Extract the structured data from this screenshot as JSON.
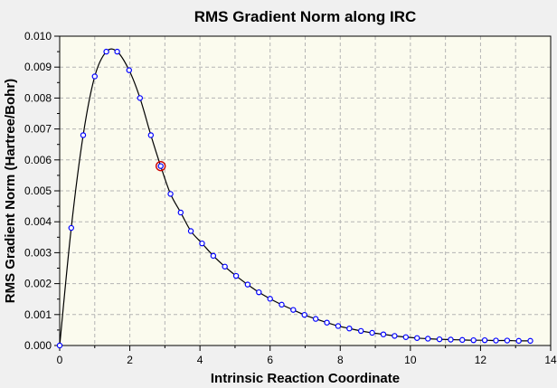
{
  "colors": {
    "window_background": "#f0f0f0",
    "plot_background": "#fbfbee",
    "grid": "#b4b4b4",
    "line": "#000000",
    "marker": "#0000ff",
    "marker_fill": "#ffffff",
    "highlight": "#cc0000"
  },
  "chart_data": {
    "type": "line",
    "title": "RMS Gradient Norm along IRC",
    "xlabel": "Intrinsic Reaction Coordinate",
    "ylabel": "RMS Gradient Norm (Hartree/Bohr)",
    "xlim": [
      0,
      14
    ],
    "ylim": [
      0,
      0.01
    ],
    "xticks": [
      "0",
      "2",
      "4",
      "6",
      "8",
      "10",
      "12",
      "14"
    ],
    "yticks": [
      "0.000",
      "0.001",
      "0.002",
      "0.003",
      "0.004",
      "0.005",
      "0.006",
      "0.007",
      "0.008",
      "0.009",
      "0.010"
    ],
    "grid": true,
    "marker": "circle",
    "highlighted_point_index": 9,
    "series": [
      {
        "x": [
          0.0,
          0.33,
          0.67,
          1.0,
          1.33,
          1.64,
          1.98,
          2.29,
          2.6,
          2.88,
          3.16,
          3.45,
          3.74,
          4.06,
          4.38,
          4.71,
          5.03,
          5.36,
          5.68,
          6.0,
          6.33,
          6.66,
          6.98,
          7.3,
          7.62,
          7.94,
          8.26,
          8.59,
          8.91,
          9.23,
          9.55,
          9.87,
          10.19,
          10.5,
          10.83,
          11.15,
          11.48,
          11.8,
          12.12,
          12.44,
          12.76,
          13.09,
          13.42
        ],
        "y": [
          0.0,
          0.0038,
          0.0068,
          0.0087,
          0.0095,
          0.0095,
          0.0089,
          0.008,
          0.0068,
          0.0058,
          0.0049,
          0.0043,
          0.0037,
          0.0033,
          0.0029,
          0.00255,
          0.00225,
          0.00197,
          0.00172,
          0.00151,
          0.00132,
          0.00115,
          0.00099,
          0.00086,
          0.00074,
          0.00063,
          0.00055,
          0.00047,
          0.00041,
          0.00036,
          0.00031,
          0.00027,
          0.00024,
          0.00022,
          0.0002,
          0.00019,
          0.00018,
          0.00017,
          0.00017,
          0.00016,
          0.00016,
          0.00015,
          0.00015
        ]
      }
    ]
  }
}
